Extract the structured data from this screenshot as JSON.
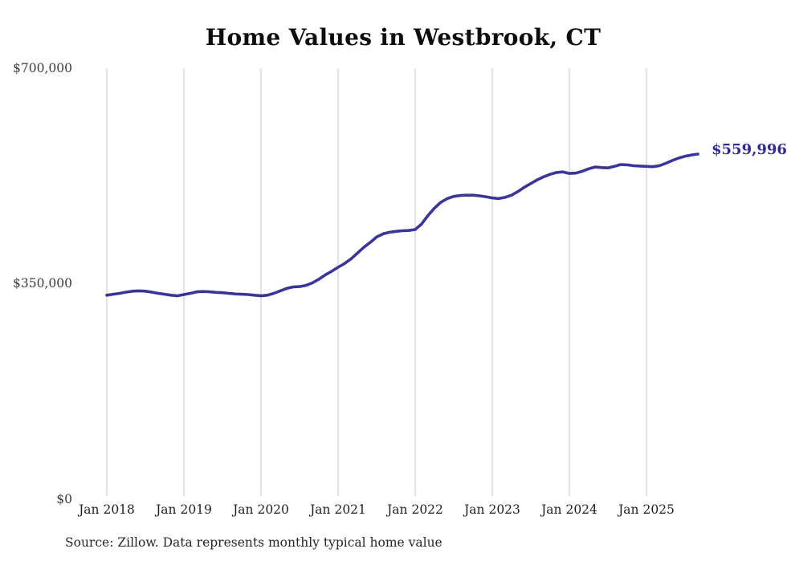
{
  "chart_data": {
    "type": "line",
    "title": "Home Values in Westbrook, CT",
    "source_note": "Source: Zillow. Data represents monthly typical home value",
    "end_label": "$559,996",
    "end_value": 559996,
    "series_name": "Monthly typical home value",
    "x_tick_labels": [
      "Jan 2018",
      "Jan 2019",
      "Jan 2020",
      "Jan 2021",
      "Jan 2022",
      "Jan 2023",
      "Jan 2024",
      "Jan 2025"
    ],
    "y_tick_labels": [
      "$0",
      "$350,000",
      "$700,000"
    ],
    "ylim": [
      0,
      700000
    ],
    "grid": "vertical-only",
    "legend": "none",
    "line_color": "#3a3597",
    "end_label_color": "#312d8e",
    "gridline_color": "#c7c7c7",
    "x": [
      "2018-01",
      "2018-02",
      "2018-03",
      "2018-04",
      "2018-05",
      "2018-06",
      "2018-07",
      "2018-08",
      "2018-09",
      "2018-10",
      "2018-11",
      "2018-12",
      "2019-01",
      "2019-02",
      "2019-03",
      "2019-04",
      "2019-05",
      "2019-06",
      "2019-07",
      "2019-08",
      "2019-09",
      "2019-10",
      "2019-11",
      "2019-12",
      "2020-01",
      "2020-02",
      "2020-03",
      "2020-04",
      "2020-05",
      "2020-06",
      "2020-07",
      "2020-08",
      "2020-09",
      "2020-10",
      "2020-11",
      "2020-12",
      "2021-01",
      "2021-02",
      "2021-03",
      "2021-04",
      "2021-05",
      "2021-06",
      "2021-07",
      "2021-08",
      "2021-09",
      "2021-10",
      "2021-11",
      "2021-12",
      "2022-01",
      "2022-02",
      "2022-03",
      "2022-04",
      "2022-05",
      "2022-06",
      "2022-07",
      "2022-08",
      "2022-09",
      "2022-10",
      "2022-11",
      "2022-12",
      "2023-01",
      "2023-02",
      "2023-03",
      "2023-04",
      "2023-05",
      "2023-06",
      "2023-07",
      "2023-08",
      "2023-09",
      "2023-10",
      "2023-11",
      "2023-12",
      "2024-01",
      "2024-02",
      "2024-03",
      "2024-04",
      "2024-05",
      "2024-06",
      "2024-07",
      "2024-08",
      "2024-09",
      "2024-10",
      "2024-11",
      "2024-12",
      "2025-01",
      "2025-02",
      "2025-03",
      "2025-04",
      "2025-05",
      "2025-06",
      "2025-07",
      "2025-08",
      "2025-09"
    ],
    "values": [
      330000,
      331500,
      333000,
      335000,
      336500,
      337000,
      336500,
      335000,
      333000,
      331500,
      330000,
      329000,
      331000,
      333000,
      335500,
      336000,
      335500,
      334500,
      334000,
      333000,
      332000,
      331500,
      331000,
      330000,
      329000,
      330000,
      333000,
      337000,
      341000,
      343500,
      344000,
      346000,
      350000,
      356000,
      363000,
      369000,
      375500,
      381500,
      389000,
      398500,
      408000,
      416000,
      425000,
      430000,
      432500,
      434000,
      435000,
      435500,
      437000,
      446000,
      460000,
      472000,
      481500,
      487500,
      491000,
      492500,
      493000,
      493000,
      492000,
      490500,
      488500,
      487500,
      489500,
      493000,
      499000,
      506000,
      512000,
      518000,
      523000,
      527000,
      530000,
      531000,
      528500,
      529000,
      532000,
      536000,
      539000,
      538000,
      537500,
      540000,
      543000,
      542500,
      541000,
      540500,
      540000,
      539500,
      541000,
      545000,
      549500,
      553500,
      556500,
      558500,
      559996
    ]
  }
}
